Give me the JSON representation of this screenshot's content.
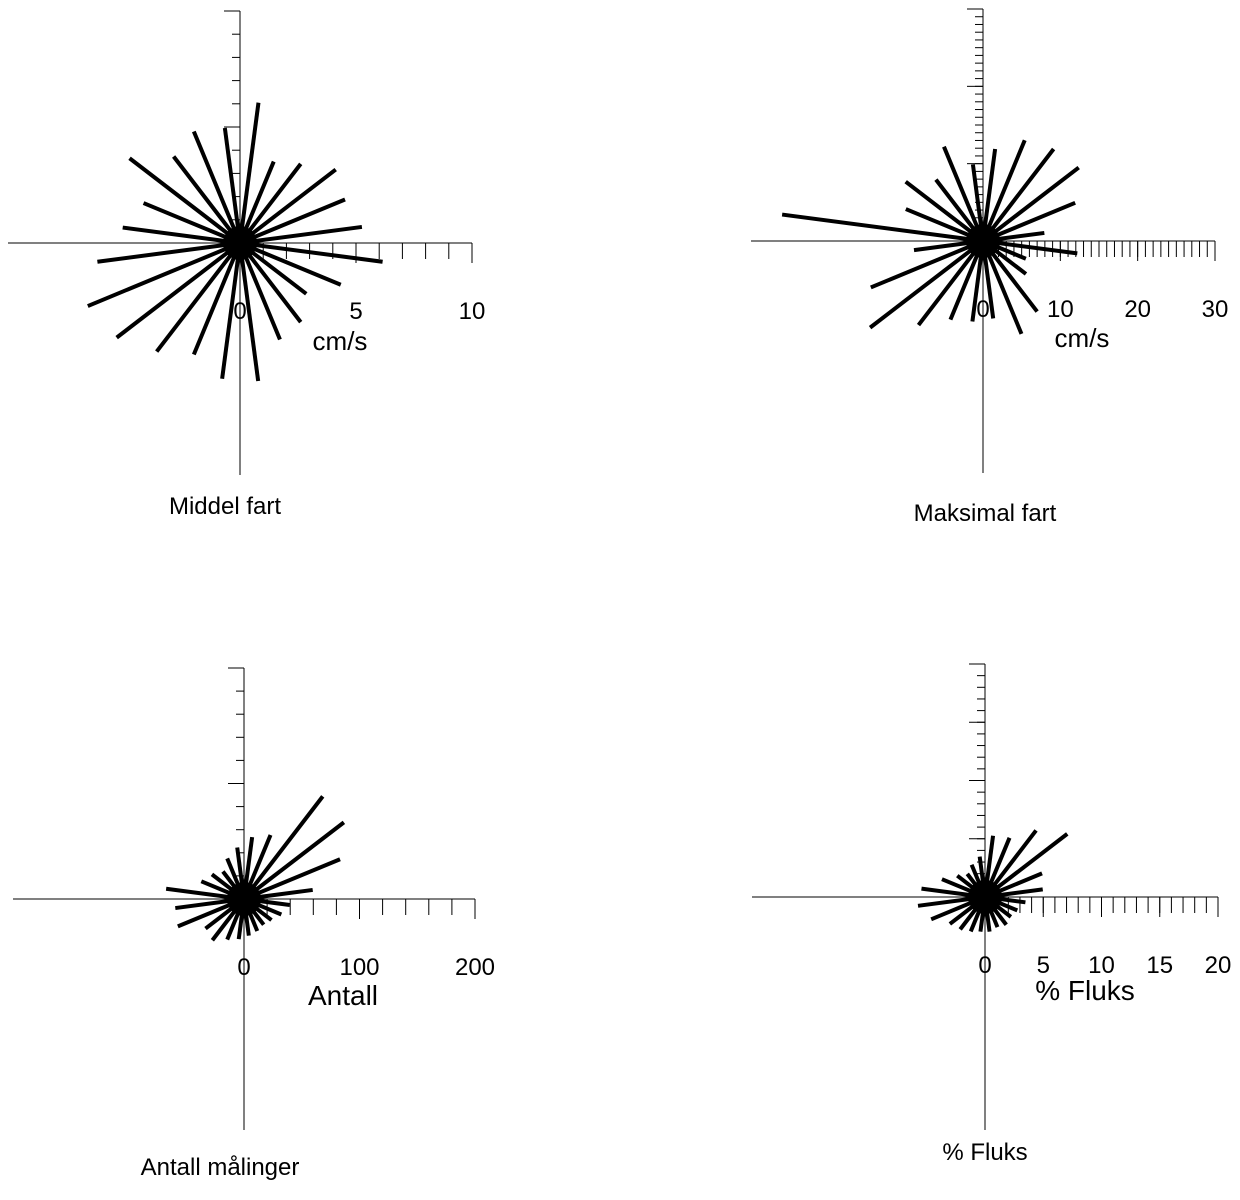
{
  "chart_data": [
    {
      "type": "rose",
      "caption": "Middel fart",
      "axis_label": "cm/s",
      "directions": [
        7.5,
        22.5,
        37.5,
        52.5,
        67.5,
        82.5,
        97.5,
        112.5,
        127.5,
        142.5,
        157.5,
        172.5,
        187.5,
        202.5,
        217.5,
        232.5,
        247.5,
        262.5,
        277.5,
        292.5,
        307.5,
        322.5,
        337.5,
        352.5
      ],
      "values": [
        6.1,
        3.8,
        4.3,
        5.2,
        4.9,
        5.3,
        6.2,
        4.7,
        3.6,
        4.3,
        4.5,
        6.0,
        5.9,
        5.2,
        5.9,
        6.7,
        7.1,
        6.2,
        5.1,
        4.5,
        6.0,
        4.7,
        5.2,
        5.0
      ],
      "color": "#000000",
      "rlim": [
        0,
        10
      ],
      "xticks": [
        0,
        5,
        10
      ],
      "minor_tick_step": 1
    },
    {
      "type": "rose",
      "caption": "Maksimal fart",
      "axis_label": "cm/s",
      "directions": [
        7.5,
        22.5,
        37.5,
        52.5,
        67.5,
        82.5,
        97.5,
        112.5,
        127.5,
        142.5,
        157.5,
        172.5,
        187.5,
        202.5,
        217.5,
        232.5,
        247.5,
        262.5,
        277.5,
        292.5,
        307.5,
        322.5,
        337.5,
        352.5
      ],
      "values": [
        12.0,
        14.1,
        15.0,
        15.6,
        12.9,
        8.0,
        12.3,
        6.0,
        7.0,
        11.5,
        13.0,
        10.1,
        10.5,
        11.0,
        13.7,
        18.4,
        15.7,
        9.0,
        26.2,
        10.8,
        12.6,
        10.0,
        13.2,
        10.0
      ],
      "color": "#000000",
      "rlim": [
        0,
        30
      ],
      "xticks": [
        0,
        10,
        20,
        30
      ],
      "minor_tick_step": 1
    },
    {
      "type": "rose",
      "caption": "Antall målinger",
      "axis_label": "Antall",
      "directions": [
        7.5,
        22.5,
        37.5,
        52.5,
        67.5,
        82.5,
        97.5,
        112.5,
        127.5,
        142.5,
        157.5,
        172.5,
        187.5,
        202.5,
        217.5,
        232.5,
        247.5,
        262.5,
        277.5,
        292.5,
        307.5,
        322.5,
        337.5,
        352.5
      ],
      "values": [
        54,
        60,
        112,
        109,
        90,
        60,
        40,
        35,
        30,
        28,
        30,
        32,
        35,
        38,
        45,
        42,
        62,
        60,
        68,
        40,
        35,
        30,
        38,
        45
      ],
      "color": "#000000",
      "rlim": [
        0,
        200
      ],
      "xticks": [
        0,
        100,
        200
      ],
      "minor_tick_step": 20
    },
    {
      "type": "rose",
      "caption": "% Fluks",
      "axis_label": "% Fluks",
      "directions": [
        7.5,
        22.5,
        37.5,
        52.5,
        67.5,
        82.5,
        97.5,
        112.5,
        127.5,
        142.5,
        157.5,
        172.5,
        187.5,
        202.5,
        217.5,
        232.5,
        247.5,
        262.5,
        277.5,
        292.5,
        307.5,
        322.5,
        337.5,
        352.5
      ],
      "values": [
        5.3,
        5.5,
        7.2,
        8.9,
        5.3,
        5.0,
        3.5,
        3.0,
        2.8,
        3.0,
        2.8,
        3.0,
        3.0,
        3.2,
        3.5,
        3.8,
        5.0,
        5.8,
        5.5,
        4.0,
        3.0,
        2.5,
        3.0,
        3.5
      ],
      "color": "#000000",
      "rlim": [
        0,
        20
      ],
      "xticks": [
        0,
        5,
        10,
        15,
        20
      ],
      "minor_tick_step": 1
    }
  ]
}
